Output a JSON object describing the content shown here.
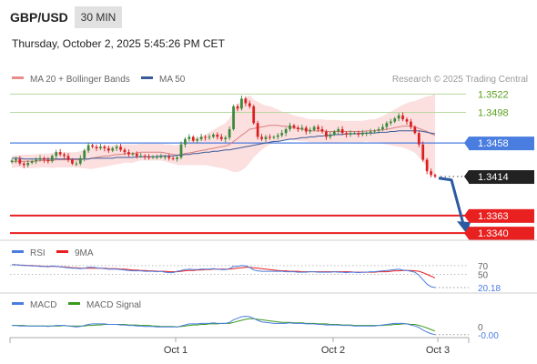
{
  "header": {
    "pair": "GBP/USD",
    "timeframe": "30 MIN",
    "datetime": "Thursday, October 2, 2025 5:45:26 PM CET"
  },
  "legend": {
    "ma20_bb": "MA 20 + Bollinger Bands",
    "ma50": "MA 50",
    "credit": "Research © 2025 Trading Central"
  },
  "colors": {
    "bull": "#3a8a3a",
    "bear": "#d92020",
    "band_fill": "#fbd9d9",
    "ma20": "#d98080",
    "ma50": "#3a5a9a",
    "resistance": "#b9d9a0",
    "resistance_text": "#5aa020",
    "pivot": "#4a7de0",
    "support": "#e82020",
    "current": "#222222",
    "arrow": "#2a5aa0",
    "rsi": "#4a7de0",
    "rsi_ma": "#e82020",
    "macd": "#4a7de0",
    "macd_signal": "#3a9a20"
  },
  "chart_data": {
    "type": "candlestick",
    "x_ticks": [
      "Oct 1",
      "Oct 2",
      "Oct 3"
    ],
    "price_ylim": [
      1.3333,
      1.3532
    ],
    "levels": [
      {
        "name": "resistance-2",
        "value": 1.3522,
        "label": "1.3522",
        "kind": "resistance"
      },
      {
        "name": "resistance-1",
        "value": 1.3498,
        "label": "1.3498",
        "kind": "resistance"
      },
      {
        "name": "pivot",
        "value": 1.3458,
        "label": "1.3458",
        "kind": "pivot"
      },
      {
        "name": "current-price",
        "value": 1.3414,
        "label": "1.3414",
        "kind": "current"
      },
      {
        "name": "support-1",
        "value": 1.3363,
        "label": "1.3363",
        "kind": "support"
      },
      {
        "name": "support-2",
        "value": 1.334,
        "label": "1.3340",
        "kind": "support"
      }
    ],
    "forecast": {
      "from": 1.3412,
      "to": 1.334
    },
    "close": [
      1.3435,
      1.3437,
      1.3431,
      1.3429,
      1.3432,
      1.3434,
      1.3436,
      1.3438,
      1.3436,
      1.3434,
      1.3441,
      1.3446,
      1.3443,
      1.3441,
      1.3436,
      1.3431,
      1.3431,
      1.3438,
      1.3448,
      1.3455,
      1.3453,
      1.3451,
      1.3453,
      1.3451,
      1.3448,
      1.3451,
      1.3453,
      1.3449,
      1.3446,
      1.3443,
      1.3444,
      1.3441,
      1.3441,
      1.344,
      1.3439,
      1.344,
      1.344,
      1.344,
      1.344,
      1.3438,
      1.3437,
      1.3439,
      1.3456,
      1.3463,
      1.3466,
      1.3461,
      1.3463,
      1.3466,
      1.3465,
      1.3466,
      1.3469,
      1.3466,
      1.3463,
      1.3465,
      1.3476,
      1.3506,
      1.3503,
      1.3516,
      1.351,
      1.3506,
      1.3484,
      1.3466,
      1.3463,
      1.3466,
      1.3465,
      1.3466,
      1.3468,
      1.3471,
      1.3476,
      1.3481,
      1.3478,
      1.3476,
      1.3478,
      1.3473,
      1.3475,
      1.3479,
      1.3476,
      1.3473,
      1.3466,
      1.3469,
      1.3473,
      1.3476,
      1.3471,
      1.3469,
      1.3471,
      1.3471,
      1.3469,
      1.3471,
      1.3471,
      1.3473,
      1.3474,
      1.3476,
      1.3479,
      1.3484,
      1.3486,
      1.349,
      1.3494,
      1.3489,
      1.3486,
      1.3479,
      1.3471,
      1.3456,
      1.3436,
      1.3421,
      1.3416,
      1.3414
    ],
    "ma20": [
      1.3433,
      1.3434,
      1.3434,
      1.3434,
      1.3434,
      1.3434,
      1.3434,
      1.3435,
      1.3435,
      1.3435,
      1.3435,
      1.3436,
      1.3436,
      1.3436,
      1.3436,
      1.3436,
      1.3436,
      1.3436,
      1.3437,
      1.3437,
      1.3438,
      1.3439,
      1.344,
      1.3441,
      1.3441,
      1.3442,
      1.3443,
      1.3443,
      1.3444,
      1.3444,
      1.3444,
      1.3445,
      1.3446,
      1.3446,
      1.3446,
      1.3446,
      1.3446,
      1.3446,
      1.3445,
      1.3444,
      1.3443,
      1.3442,
      1.3443,
      1.3444,
      1.3445,
      1.3446,
      1.3447,
      1.3448,
      1.3449,
      1.345,
      1.3451,
      1.3452,
      1.3453,
      1.3454,
      1.3456,
      1.346,
      1.3464,
      1.3468,
      1.3472,
      1.3476,
      1.3477,
      1.3478,
      1.3479,
      1.348,
      1.3481,
      1.3481,
      1.3481,
      1.348,
      1.348,
      1.3479,
      1.3478,
      1.3477,
      1.3476,
      1.3475,
      1.3474,
      1.3474,
      1.3474,
      1.3474,
      1.3473,
      1.3473,
      1.3473,
      1.3473,
      1.3473,
      1.3473,
      1.3473,
      1.3473,
      1.3473,
      1.3473,
      1.3474,
      1.3474,
      1.3474,
      1.3475,
      1.3475,
      1.3476,
      1.3477,
      1.3478,
      1.3479,
      1.348,
      1.348,
      1.348,
      1.3479,
      1.3477,
      1.3475,
      1.3473,
      1.347,
      1.3468
    ],
    "bb_width": [
      0.0008,
      0.0008,
      0.0008,
      0.0009,
      0.0009,
      0.0009,
      0.0009,
      0.0009,
      0.0009,
      0.0009,
      0.001,
      0.001,
      0.001,
      0.001,
      0.001,
      0.001,
      0.001,
      0.0011,
      0.0012,
      0.0013,
      0.0014,
      0.0014,
      0.0014,
      0.0014,
      0.0013,
      0.0013,
      0.0013,
      0.0012,
      0.0012,
      0.0012,
      0.0012,
      0.0011,
      0.0011,
      0.0011,
      0.0011,
      0.0011,
      0.0011,
      0.0011,
      0.0011,
      0.0012,
      0.0012,
      0.0013,
      0.0014,
      0.0015,
      0.0016,
      0.0017,
      0.0018,
      0.0019,
      0.002,
      0.0022,
      0.0024,
      0.0026,
      0.0028,
      0.003,
      0.0034,
      0.004,
      0.0044,
      0.0046,
      0.0046,
      0.0044,
      0.0038,
      0.0034,
      0.003,
      0.0027,
      0.0025,
      0.0023,
      0.0021,
      0.0019,
      0.0018,
      0.0017,
      0.0016,
      0.0016,
      0.0016,
      0.0015,
      0.0015,
      0.0015,
      0.0015,
      0.0015,
      0.0015,
      0.0015,
      0.0015,
      0.0015,
      0.0014,
      0.0014,
      0.0014,
      0.0014,
      0.0014,
      0.0014,
      0.0014,
      0.0015,
      0.0015,
      0.0016,
      0.0018,
      0.002,
      0.0022,
      0.0024,
      0.0026,
      0.0028,
      0.003,
      0.0032,
      0.0034,
      0.0038,
      0.0042,
      0.0046,
      0.005,
      0.0054
    ],
    "ma50": [
      1.3438,
      1.3438,
      1.3438,
      1.3437,
      1.3437,
      1.3437,
      1.3437,
      1.3437,
      1.3437,
      1.3437,
      1.3437,
      1.3437,
      1.3437,
      1.3437,
      1.3437,
      1.3437,
      1.3437,
      1.3437,
      1.3437,
      1.3437,
      1.3438,
      1.3438,
      1.3438,
      1.3438,
      1.3438,
      1.3438,
      1.3439,
      1.3439,
      1.3439,
      1.3439,
      1.3439,
      1.344,
      1.344,
      1.344,
      1.344,
      1.344,
      1.344,
      1.3441,
      1.3441,
      1.3441,
      1.3441,
      1.3442,
      1.3442,
      1.3443,
      1.3443,
      1.3444,
      1.3444,
      1.3445,
      1.3446,
      1.3446,
      1.3447,
      1.3447,
      1.3448,
      1.3449,
      1.3449,
      1.345,
      1.3451,
      1.3452,
      1.3453,
      1.3454,
      1.3455,
      1.3456,
      1.3457,
      1.3458,
      1.3459,
      1.346,
      1.346,
      1.3461,
      1.3462,
      1.3463,
      1.3463,
      1.3464,
      1.3465,
      1.3465,
      1.3466,
      1.3466,
      1.3467,
      1.3467,
      1.3468,
      1.3468,
      1.3469,
      1.3469,
      1.3469,
      1.347,
      1.347,
      1.347,
      1.347,
      1.3471,
      1.3471,
      1.3471,
      1.3471,
      1.3472,
      1.3472,
      1.3472,
      1.3473,
      1.3473,
      1.3474,
      1.3474,
      1.3474,
      1.3474,
      1.3474,
      1.3474,
      1.3473,
      1.3472,
      1.3471,
      1.347
    ],
    "rsi": {
      "label": "RSI",
      "ma_label": "9MA",
      "levels": [
        {
          "value": 70,
          "label": "70"
        },
        {
          "value": 50,
          "label": "50"
        }
      ],
      "ylim": [
        18,
        80
      ],
      "current_label": "20.18",
      "values": [
        72,
        72,
        71,
        70,
        70,
        69,
        69,
        68,
        68,
        67,
        69,
        68,
        67,
        66,
        65,
        64,
        64,
        63,
        64,
        66,
        66,
        65,
        64,
        63,
        62,
        62,
        62,
        61,
        60,
        59,
        58,
        58,
        58,
        57,
        57,
        57,
        56,
        57,
        55,
        54,
        54,
        57,
        59,
        61,
        62,
        61,
        61,
        62,
        62,
        62,
        63,
        62,
        61,
        61,
        63,
        68,
        68,
        70,
        69,
        66,
        60,
        58,
        57,
        57,
        57,
        57,
        57,
        57,
        56,
        56,
        56,
        55,
        55,
        55,
        56,
        56,
        55,
        55,
        55,
        55,
        56,
        55,
        55,
        54,
        55,
        55,
        54,
        55,
        55,
        56,
        56,
        57,
        58,
        59,
        60,
        61,
        62,
        60,
        59,
        57,
        55,
        48,
        38,
        28,
        22,
        20.18
      ],
      "ma_values": [
        72,
        72,
        71,
        71,
        70,
        70,
        69,
        69,
        68,
        68,
        68,
        68,
        67,
        67,
        66,
        65,
        65,
        64,
        64,
        64,
        64,
        64,
        64,
        64,
        63,
        63,
        63,
        62,
        62,
        61,
        60,
        60,
        59,
        59,
        58,
        58,
        57,
        57,
        57,
        56,
        56,
        56,
        57,
        58,
        59,
        59,
        60,
        60,
        61,
        61,
        62,
        62,
        62,
        62,
        62,
        63,
        64,
        65,
        66,
        66,
        65,
        64,
        63,
        62,
        61,
        60,
        59,
        58,
        58,
        57,
        57,
        57,
        56,
        56,
        56,
        56,
        56,
        56,
        56,
        56,
        56,
        56,
        56,
        56,
        56,
        55,
        55,
        55,
        55,
        55,
        55,
        56,
        56,
        56,
        57,
        58,
        58,
        59,
        59,
        59,
        58,
        57,
        54,
        50,
        46,
        42
      ]
    },
    "macd": {
      "label": "MACD",
      "signal_label": "MACD Signal",
      "zero_label": "0",
      "current_label": "-0.00",
      "ylim": [
        -0.002,
        0.0028
      ],
      "values": [
        0.0002,
        0.0002,
        0.0001,
        0.0001,
        0.0001,
        0.0001,
        0.0001,
        0.0001,
        0.0001,
        0.0,
        0.0001,
        0.0002,
        0.0002,
        0.0002,
        0.0001,
        0.0,
        -0.0001,
        0.0,
        0.0002,
        0.0004,
        0.0005,
        0.0005,
        0.0005,
        0.0005,
        0.0004,
        0.0004,
        0.0004,
        0.0003,
        0.0003,
        0.0002,
        0.0002,
        0.0001,
        0.0001,
        0.0,
        0.0,
        0.0,
        -0.0001,
        -0.0001,
        -0.0001,
        -0.0001,
        -0.0001,
        -0.0001,
        0.0001,
        0.0003,
        0.0005,
        0.0005,
        0.0005,
        0.0006,
        0.0006,
        0.0006,
        0.0007,
        0.0006,
        0.0006,
        0.0006,
        0.0008,
        0.0013,
        0.0016,
        0.0019,
        0.002,
        0.0019,
        0.0016,
        0.0012,
        0.0009,
        0.0008,
        0.0007,
        0.0006,
        0.0006,
        0.0006,
        0.0006,
        0.0007,
        0.0006,
        0.0006,
        0.0006,
        0.0005,
        0.0005,
        0.0005,
        0.0004,
        0.0004,
        0.0003,
        0.0003,
        0.0003,
        0.0003,
        0.0002,
        0.0002,
        0.0002,
        0.0001,
        0.0001,
        0.0001,
        0.0001,
        0.0001,
        0.0001,
        0.0002,
        0.0003,
        0.0004,
        0.0005,
        0.0006,
        0.0006,
        0.0006,
        0.0005,
        0.0003,
        0.0001,
        -0.0002,
        -0.0007,
        -0.0011,
        -0.0014,
        -0.0016
      ],
      "signal": [
        0.0002,
        0.0002,
        0.0002,
        0.0002,
        0.0001,
        0.0001,
        0.0001,
        0.0001,
        0.0001,
        0.0001,
        0.0001,
        0.0001,
        0.0001,
        0.0002,
        0.0001,
        0.0001,
        0.0001,
        0.0001,
        0.0001,
        0.0002,
        0.0002,
        0.0003,
        0.0003,
        0.0004,
        0.0004,
        0.0004,
        0.0004,
        0.0004,
        0.0004,
        0.0003,
        0.0003,
        0.0003,
        0.0002,
        0.0002,
        0.0002,
        0.0001,
        0.0001,
        0.0,
        0.0,
        0.0,
        0.0,
        -0.0001,
        0.0,
        0.0001,
        0.0002,
        0.0003,
        0.0003,
        0.0004,
        0.0004,
        0.0005,
        0.0005,
        0.0005,
        0.0006,
        0.0006,
        0.0006,
        0.0008,
        0.001,
        0.0012,
        0.0014,
        0.0015,
        0.0015,
        0.0014,
        0.0013,
        0.0012,
        0.0011,
        0.001,
        0.0009,
        0.0008,
        0.0008,
        0.0008,
        0.0007,
        0.0007,
        0.0007,
        0.0006,
        0.0006,
        0.0006,
        0.0005,
        0.0005,
        0.0005,
        0.0004,
        0.0004,
        0.0004,
        0.0003,
        0.0003,
        0.0003,
        0.0002,
        0.0002,
        0.0002,
        0.0002,
        0.0002,
        0.0002,
        0.0002,
        0.0002,
        0.0003,
        0.0003,
        0.0004,
        0.0004,
        0.0005,
        0.0005,
        0.0004,
        0.0004,
        0.0002,
        0.0,
        -0.0003,
        -0.0006,
        -0.0009
      ]
    }
  }
}
